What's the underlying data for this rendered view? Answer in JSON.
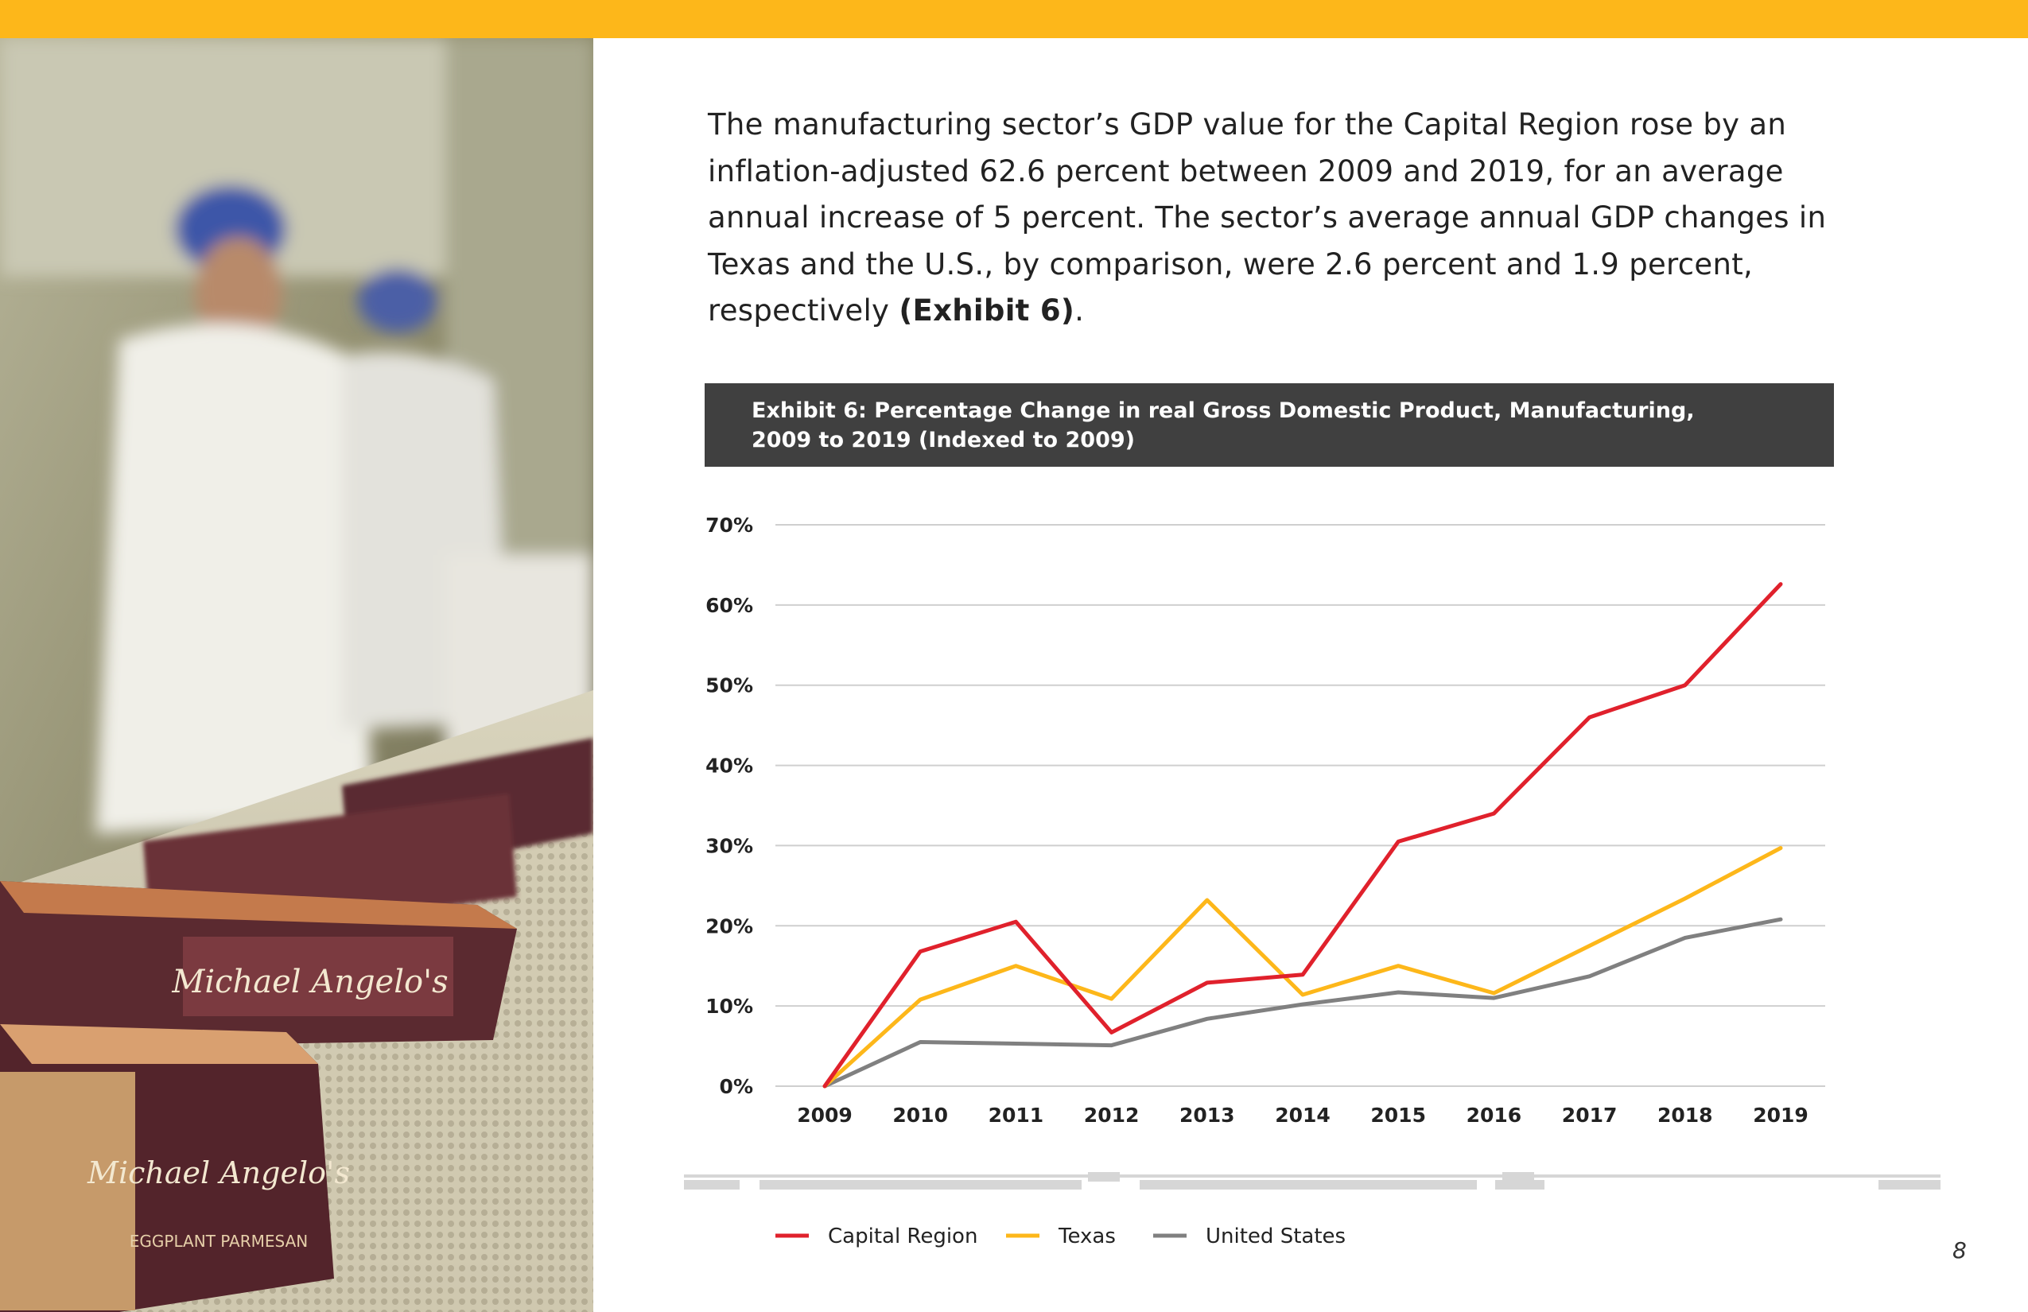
{
  "colors": {
    "accent_yellow": "#FDB71A",
    "header_bg": "#404040",
    "capital_region": "#E0212C",
    "texas": "#FDB71A",
    "united_states": "#808080",
    "grid": "#CFCFCF"
  },
  "intro": {
    "text_plain": "The manufacturing sector’s GDP value for the Capital Region rose by an inflation-adjusted 62.6 percent between 2009 and 2019, for an average annual increase of 5 percent. The sector’s average annual GDP changes in Texas and the U.S., by comparison, were 2.6 percent and 1.9 percent, respectively ",
    "text_bold": "(Exhibit 6)",
    "text_end": "."
  },
  "exhibit": {
    "title_line1": "Exhibit 6: Percentage Change in real Gross Domestic Product, Manufacturing,",
    "title_line2": "2009 to 2019 (Indexed to 2009)"
  },
  "page_number": "8",
  "photo": {
    "box_label": "Michael Angelo's",
    "box_sublabel": "EGGPLANT PARMESAN"
  },
  "chart_data": {
    "type": "line",
    "x": [
      "2009",
      "2010",
      "2011",
      "2012",
      "2013",
      "2014",
      "2015",
      "2016",
      "2017",
      "2018",
      "2019"
    ],
    "ylim": [
      0,
      70
    ],
    "yticks": [
      0,
      10,
      20,
      30,
      40,
      50,
      60,
      70
    ],
    "ytick_labels": [
      "0%",
      "10%",
      "20%",
      "30%",
      "40%",
      "50%",
      "60%",
      "70%"
    ],
    "grid": true,
    "legend_position": "bottom-left",
    "series": [
      {
        "name": "Capital Region",
        "color": "#E0212C",
        "values": [
          0,
          16.8,
          20.5,
          6.7,
          12.9,
          13.9,
          30.5,
          34.0,
          46.0,
          50.0,
          62.6
        ]
      },
      {
        "name": "Texas",
        "color": "#FDB71A",
        "values": [
          0,
          10.8,
          15.0,
          10.9,
          23.2,
          11.4,
          15.0,
          11.6,
          17.5,
          23.4,
          29.7
        ]
      },
      {
        "name": "United States",
        "color": "#808080",
        "values": [
          0,
          5.5,
          5.3,
          5.1,
          8.4,
          10.2,
          11.7,
          11.0,
          13.7,
          18.5,
          20.8
        ]
      }
    ]
  }
}
